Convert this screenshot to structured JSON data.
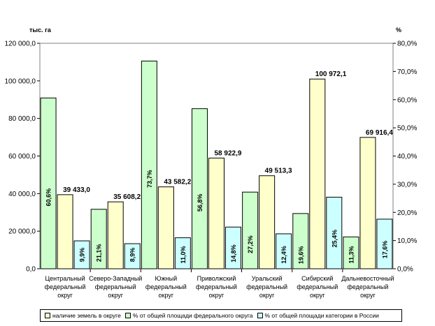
{
  "chart_data": {
    "type": "bar",
    "left_axis_unit": "тыс. га",
    "right_axis_unit": "%",
    "y_left_lim": [
      0,
      120000
    ],
    "y_right_lim": [
      0,
      80
    ],
    "y_left_ticks": [
      "0,0",
      "20 000,0",
      "40 000,0",
      "60 000,0",
      "80 000,0",
      "100 000,0",
      "120 000,0"
    ],
    "y_right_ticks": [
      "0,0%",
      "10,0%",
      "20,0%",
      "30,0%",
      "40,0%",
      "50,0%",
      "60,0%",
      "70,0%",
      "80,0%"
    ],
    "categories": [
      [
        "Центральный",
        "федеральный",
        "округ"
      ],
      [
        "Северо-Западный",
        "федеральный",
        "округ"
      ],
      [
        "Южный",
        "федеральный",
        "округ"
      ],
      [
        "Приволжский",
        "федеральный",
        "округ"
      ],
      [
        "Уральский",
        "федеральный",
        "округ"
      ],
      [
        "Сибирский",
        "федеральный",
        "округ"
      ],
      [
        "Дальневосточный",
        "федеральный",
        "округ"
      ]
    ],
    "grid": false,
    "legend_position": "bottom",
    "series": [
      {
        "name": "% от общей площади федерального округа",
        "axis": "right",
        "color": "#CCFFCC",
        "values": [
          60.6,
          21.1,
          73.7,
          56.8,
          27.2,
          19.6,
          11.3
        ],
        "labels": [
          "60,6%",
          "21,1%",
          "73,7%",
          "56,8%",
          "27,2%",
          "19,6%",
          "11,3%"
        ]
      },
      {
        "name": "наличие земель в округе",
        "axis": "left",
        "color": "#FFFFCC",
        "values": [
          39433.0,
          35608.2,
          43582.2,
          58922.9,
          49513.3,
          100972.1,
          69916.4
        ],
        "labels": [
          "39 433,0",
          "35 608,2",
          "43 582,2",
          "58 922,9",
          "49 513,3",
          "100 972,1",
          "69 916,4"
        ]
      },
      {
        "name": "% от общей площади категории в России",
        "axis": "right",
        "color": "#CCFFFF",
        "values": [
          9.9,
          8.9,
          11.0,
          14.8,
          12.4,
          25.4,
          17.6
        ],
        "labels": [
          "9,9%",
          "8,9%",
          "11,0%",
          "14,8%",
          "12,4%",
          "25,4%",
          "17,6%"
        ]
      }
    ],
    "legend_order": [
      1,
      0,
      2
    ]
  }
}
